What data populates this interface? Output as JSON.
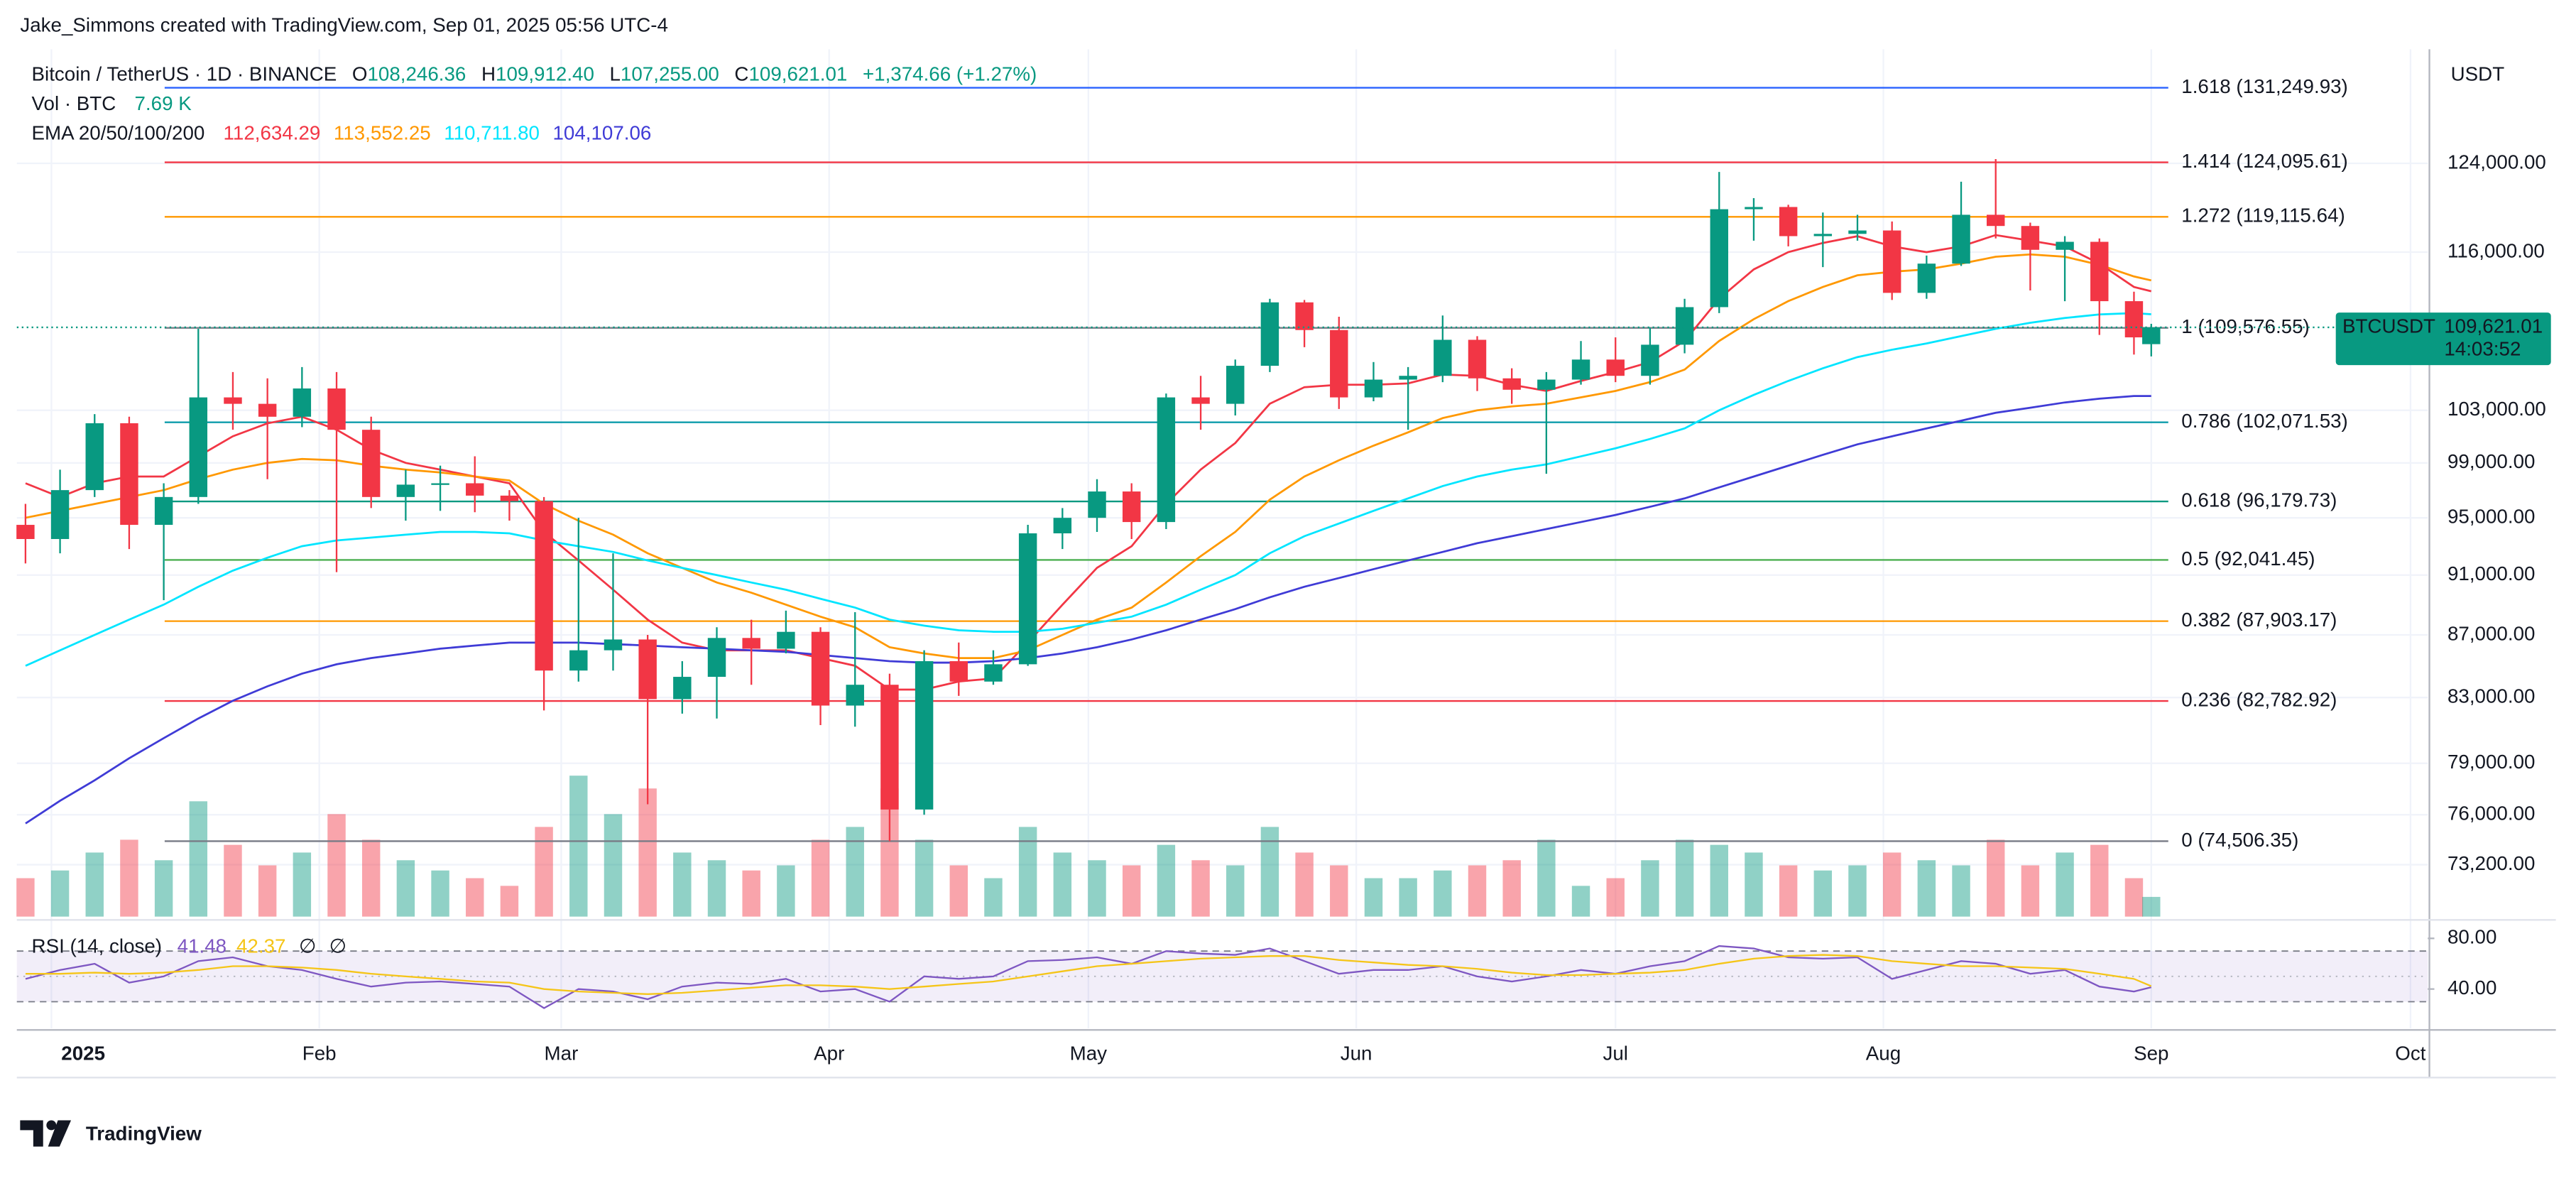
{
  "header": {
    "attribution": "Jake_Simmons created with TradingView.com, Sep 01, 2025 05:56 UTC-4"
  },
  "footer": {
    "brand": "TradingView"
  },
  "chart_data": {
    "type": "candlestick",
    "symbol": "Bitcoin / TetherUS · 1D · BINANCE",
    "ohlc_legend": [
      {
        "key": "O",
        "text": "108,246.36"
      },
      {
        "key": "H",
        "text": "109,912.40"
      },
      {
        "key": "L",
        "text": "107,255.00"
      },
      {
        "key": "C",
        "text": "109,621.01"
      }
    ],
    "change": "+1,374.66 (+1.27%)",
    "currency": "USDT",
    "ticker": "BTCUSDT",
    "last_price": "109,621.01",
    "countdown": "14:03:52",
    "up_color": "#089981",
    "down_color": "#f23645",
    "log_scale": true,
    "grid": true,
    "xlim": [
      "2024-12-28",
      "2025-10-03"
    ],
    "xticks": [
      {
        "value": "2025-01",
        "label": "2025"
      },
      {
        "value": "2025-02",
        "label": "Feb"
      },
      {
        "value": "2025-03",
        "label": "Mar"
      },
      {
        "value": "2025-04",
        "label": "Apr"
      },
      {
        "value": "2025-05",
        "label": "May"
      },
      {
        "value": "2025-06",
        "label": "Jun"
      },
      {
        "value": "2025-07",
        "label": "Jul"
      },
      {
        "value": "2025-08",
        "label": "Aug"
      },
      {
        "value": "2025-09",
        "label": "Sep"
      },
      {
        "value": "2025-10",
        "label": "Oct"
      }
    ],
    "ylim": [
      70400,
      135100
    ],
    "yticks": [
      {
        "value": 124000,
        "label": "124,000.00"
      },
      {
        "value": 116000,
        "label": "116,000.00"
      },
      {
        "value": 103000,
        "label": "103,000.00"
      },
      {
        "value": 99000,
        "label": "99,000.00"
      },
      {
        "value": 95000,
        "label": "95,000.00"
      },
      {
        "value": 91000,
        "label": "91,000.00"
      },
      {
        "value": 87000,
        "label": "87,000.00"
      },
      {
        "value": 83000,
        "label": "83,000.00"
      },
      {
        "value": 79000,
        "label": "79,000.00"
      },
      {
        "value": 76000,
        "label": "76,000.00"
      },
      {
        "value": 73200,
        "label": "73,200.00"
      }
    ],
    "x": [
      "2024-12-29",
      "2025-01-02",
      "2025-01-06",
      "2025-01-10",
      "2025-01-14",
      "2025-01-18",
      "2025-01-22",
      "2025-01-26",
      "2025-01-30",
      "2025-02-03",
      "2025-02-07",
      "2025-02-11",
      "2025-02-15",
      "2025-02-19",
      "2025-02-23",
      "2025-02-27",
      "2025-03-03",
      "2025-03-07",
      "2025-03-11",
      "2025-03-15",
      "2025-03-19",
      "2025-03-23",
      "2025-03-27",
      "2025-03-31",
      "2025-04-04",
      "2025-04-08",
      "2025-04-12",
      "2025-04-16",
      "2025-04-20",
      "2025-04-24",
      "2025-04-28",
      "2025-05-02",
      "2025-05-06",
      "2025-05-10",
      "2025-05-14",
      "2025-05-18",
      "2025-05-22",
      "2025-05-26",
      "2025-05-30",
      "2025-06-03",
      "2025-06-07",
      "2025-06-11",
      "2025-06-15",
      "2025-06-19",
      "2025-06-23",
      "2025-06-27",
      "2025-07-01",
      "2025-07-05",
      "2025-07-09",
      "2025-07-13",
      "2025-07-17",
      "2025-07-21",
      "2025-07-25",
      "2025-07-29",
      "2025-08-02",
      "2025-08-06",
      "2025-08-10",
      "2025-08-14",
      "2025-08-18",
      "2025-08-22",
      "2025-08-26",
      "2025-08-30",
      "2025-09-01"
    ],
    "open": [
      94500,
      93500,
      97000,
      102000,
      94500,
      96500,
      104000,
      103500,
      102500,
      104700,
      101500,
      96500,
      97400,
      97500,
      96600,
      96200,
      84700,
      86000,
      86700,
      82900,
      84300,
      86800,
      86100,
      87200,
      82500,
      83800,
      76300,
      85300,
      84000,
      85100,
      93900,
      95000,
      96900,
      94700,
      104000,
      103500,
      106500,
      111700,
      109400,
      104000,
      105400,
      105700,
      108600,
      105500,
      104600,
      105400,
      107000,
      105700,
      108200,
      111300,
      119800,
      120000,
      117400,
      117600,
      117900,
      112500,
      115000,
      119300,
      118300,
      116200,
      116900,
      111800,
      108246.36
    ],
    "high": [
      96000,
      98500,
      102700,
      102500,
      97500,
      109500,
      106000,
      105500,
      106400,
      106000,
      102500,
      98500,
      98800,
      99500,
      97000,
      96500,
      95000,
      92500,
      87000,
      85300,
      87500,
      88000,
      88600,
      87500,
      88500,
      84500,
      86000,
      86500,
      86000,
      94500,
      95700,
      97800,
      97500,
      104300,
      105700,
      107000,
      112000,
      111900,
      110500,
      106800,
      106400,
      110600,
      108900,
      106300,
      106000,
      108500,
      108800,
      109600,
      112000,
      123200,
      120800,
      120200,
      119500,
      119300,
      118700,
      115700,
      122300,
      124400,
      118600,
      117400,
      117200,
      112600,
      109912.4
    ],
    "low": [
      91800,
      92500,
      96500,
      92800,
      89300,
      96000,
      101500,
      97800,
      101700,
      91200,
      95700,
      94800,
      95500,
      95400,
      94800,
      82200,
      84000,
      84700,
      76600,
      82000,
      81700,
      83800,
      85800,
      81300,
      81200,
      74500,
      76000,
      83100,
      83800,
      85000,
      92800,
      94000,
      93500,
      94200,
      101500,
      102600,
      106000,
      108000,
      103100,
      103700,
      101500,
      105200,
      104500,
      103500,
      98200,
      105000,
      105200,
      105000,
      107500,
      110800,
      117000,
      116500,
      114700,
      117000,
      111900,
      112000,
      114800,
      117200,
      112700,
      111800,
      109000,
      107400,
      107255.0
    ],
    "close": [
      93500,
      97000,
      102000,
      94500,
      96500,
      104000,
      103500,
      102500,
      104700,
      101500,
      96500,
      97400,
      97500,
      96600,
      96200,
      84700,
      86000,
      86700,
      82900,
      84300,
      86800,
      86100,
      87200,
      82500,
      83800,
      76300,
      85300,
      84000,
      85100,
      93900,
      95000,
      96900,
      94700,
      104000,
      103500,
      106500,
      111700,
      109400,
      104000,
      105400,
      105700,
      108600,
      105500,
      104600,
      105400,
      107000,
      105700,
      108200,
      111300,
      119800,
      120000,
      117400,
      117600,
      117900,
      112500,
      115000,
      119300,
      118300,
      116200,
      116900,
      111800,
      108800,
      109621.01
    ],
    "volume": {
      "label": "Vol · BTC",
      "value_label": "7.69 K",
      "values": [
        15,
        18,
        25,
        30,
        22,
        45,
        28,
        20,
        25,
        40,
        30,
        22,
        18,
        15,
        12,
        35,
        55,
        40,
        50,
        25,
        22,
        18,
        20,
        30,
        35,
        50,
        30,
        20,
        15,
        35,
        25,
        22,
        20,
        28,
        22,
        20,
        35,
        25,
        20,
        15,
        15,
        18,
        20,
        22,
        30,
        12,
        15,
        22,
        30,
        28,
        25,
        20,
        18,
        20,
        25,
        22,
        20,
        30,
        20,
        25,
        28,
        15,
        7.69
      ]
    },
    "ema": {
      "label": "EMA 20/50/100/200",
      "series": [
        {
          "color": "#f23645",
          "value_label": "112,634.29",
          "values": [
            97500,
            96500,
            97500,
            98000,
            98000,
            99500,
            101000,
            102000,
            102500,
            101500,
            100000,
            99000,
            98500,
            98000,
            97500,
            94000,
            92000,
            90000,
            88000,
            86500,
            86000,
            86000,
            86000,
            85500,
            85000,
            83500,
            83500,
            84000,
            84200,
            86500,
            89000,
            91500,
            93000,
            96000,
            98500,
            100500,
            103500,
            104800,
            105000,
            105000,
            105100,
            105800,
            105700,
            105000,
            104500,
            105300,
            106000,
            106800,
            108500,
            112000,
            114500,
            116000,
            116800,
            117400,
            116500,
            116000,
            116500,
            117500,
            117000,
            116500,
            115000,
            113000,
            112634.29
          ]
        },
        {
          "color": "#ff9800",
          "value_label": "113,552.25",
          "values": [
            95000,
            95500,
            96000,
            96500,
            97000,
            97800,
            98500,
            99000,
            99300,
            99200,
            98800,
            98500,
            98300,
            98000,
            97700,
            96000,
            94800,
            93800,
            92500,
            91500,
            90500,
            89800,
            89000,
            88200,
            87500,
            86200,
            85800,
            85500,
            85500,
            86000,
            87000,
            88000,
            88800,
            90500,
            92300,
            94000,
            96300,
            98000,
            99200,
            100300,
            101300,
            102400,
            103000,
            103300,
            103500,
            104000,
            104500,
            105200,
            106200,
            108500,
            110300,
            111800,
            113000,
            114000,
            114300,
            114500,
            115000,
            115600,
            115800,
            115600,
            114900,
            113900,
            113552.25
          ]
        },
        {
          "color": "#00e5ff",
          "value_label": "110,711.80",
          "values": [
            85000,
            86000,
            87000,
            88000,
            89000,
            90200,
            91300,
            92200,
            93000,
            93400,
            93600,
            93800,
            94000,
            94000,
            93900,
            93400,
            93000,
            92600,
            92000,
            91500,
            91000,
            90500,
            90000,
            89400,
            88800,
            88000,
            87600,
            87300,
            87200,
            87200,
            87400,
            87800,
            88200,
            89000,
            90000,
            91000,
            92500,
            93700,
            94600,
            95500,
            96400,
            97300,
            98000,
            98500,
            98900,
            99500,
            100100,
            100800,
            101600,
            103000,
            104200,
            105300,
            106300,
            107200,
            107800,
            108300,
            108900,
            109500,
            110000,
            110400,
            110700,
            110800,
            110711.8
          ]
        },
        {
          "color": "#3f3bd6",
          "value_label": "104,107.06",
          "values": [
            75500,
            76800,
            78000,
            79300,
            80500,
            81700,
            82800,
            83700,
            84500,
            85100,
            85500,
            85800,
            86100,
            86300,
            86500,
            86500,
            86500,
            86400,
            86300,
            86200,
            86100,
            86000,
            85900,
            85700,
            85500,
            85300,
            85200,
            85200,
            85300,
            85500,
            85800,
            86200,
            86700,
            87300,
            88000,
            88700,
            89500,
            90200,
            90800,
            91400,
            92000,
            92600,
            93200,
            93700,
            94200,
            94700,
            95200,
            95800,
            96400,
            97200,
            98000,
            98800,
            99600,
            100400,
            101000,
            101600,
            102200,
            102800,
            103200,
            103600,
            103900,
            104100,
            104107.06
          ]
        }
      ]
    },
    "fib_levels": [
      {
        "label": "1.618 (131,249.93)",
        "price": 131249.93,
        "color": "#2962ff"
      },
      {
        "label": "1.414 (124,095.61)",
        "price": 124095.61,
        "color": "#f23645"
      },
      {
        "label": "1.272 (119,115.64)",
        "price": 119115.64,
        "color": "#ff9800"
      },
      {
        "label": "1 (109,576.55)",
        "price": 109576.55,
        "color": "#787b86"
      },
      {
        "label": "0.786 (102,071.53)",
        "price": 102071.53,
        "color": "#0097a7"
      },
      {
        "label": "0.618 (96,179.73)",
        "price": 96179.73,
        "color": "#089981"
      },
      {
        "label": "0.5 (92,041.45)",
        "price": 92041.45,
        "color": "#4caf50"
      },
      {
        "label": "0.382 (87,903.17)",
        "price": 87903.17,
        "color": "#ff9800"
      },
      {
        "label": "0.236 (82,782.92)",
        "price": 82782.92,
        "color": "#f23645"
      },
      {
        "label": "0 (74,506.35)",
        "price": 74506.35,
        "color": "#787b86"
      }
    ],
    "rsi": {
      "label": "RSI (14, close)",
      "extra_labels": [
        "∅",
        "∅"
      ],
      "ylim": [
        9,
        92
      ],
      "yticks": [
        {
          "value": 80,
          "label": "80.00"
        },
        {
          "value": 40,
          "label": "40.00"
        }
      ],
      "bands": [
        30,
        70
      ],
      "midline": 50,
      "series": [
        {
          "color": "#7e57c2",
          "value_label": "41.48",
          "values": [
            48,
            55,
            60,
            45,
            50,
            62,
            65,
            58,
            55,
            48,
            42,
            45,
            46,
            44,
            42,
            25,
            40,
            38,
            32,
            42,
            45,
            44,
            48,
            38,
            40,
            30,
            50,
            48,
            50,
            62,
            63,
            65,
            60,
            70,
            68,
            67,
            72,
            62,
            52,
            55,
            55,
            58,
            50,
            46,
            50,
            55,
            52,
            58,
            62,
            74,
            72,
            65,
            64,
            65,
            48,
            55,
            62,
            60,
            52,
            55,
            42,
            38,
            41.48
          ]
        },
        {
          "color": "#f5c518",
          "value_label": "42.37",
          "values": [
            52,
            52,
            53,
            52,
            53,
            55,
            58,
            58,
            57,
            55,
            52,
            50,
            48,
            46,
            45,
            40,
            38,
            37,
            36,
            37,
            39,
            41,
            43,
            43,
            42,
            40,
            42,
            44,
            46,
            50,
            54,
            58,
            60,
            62,
            64,
            65,
            66,
            66,
            63,
            61,
            59,
            58,
            56,
            53,
            51,
            51,
            52,
            53,
            55,
            60,
            64,
            66,
            67,
            66,
            62,
            60,
            58,
            58,
            57,
            56,
            52,
            48,
            42.37
          ]
        }
      ]
    }
  }
}
